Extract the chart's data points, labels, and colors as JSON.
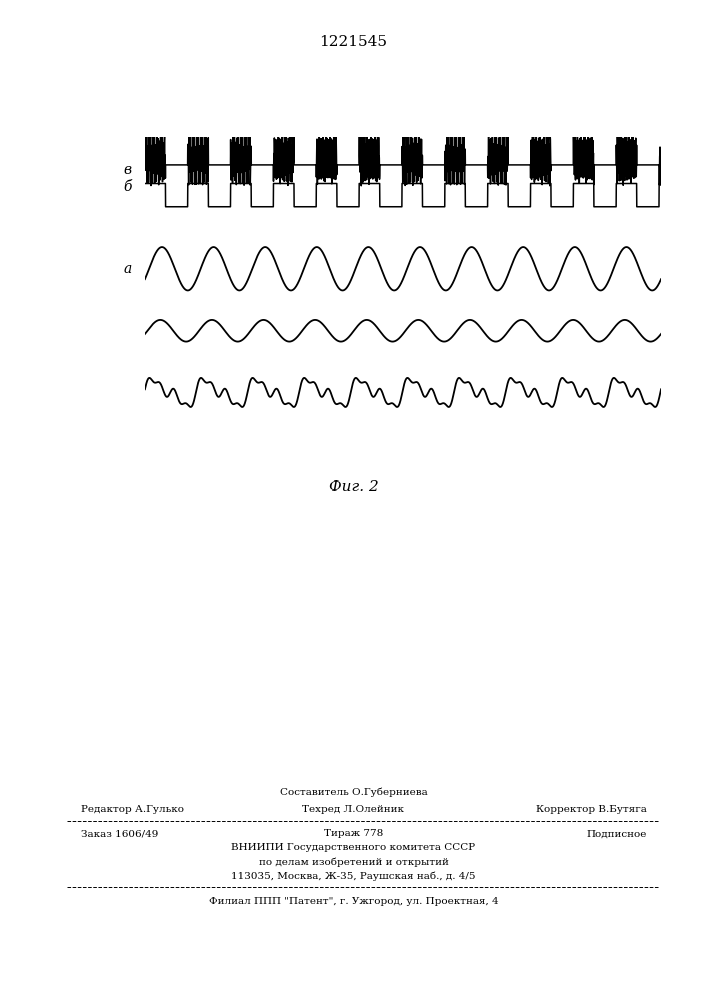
{
  "patent_number": "1221545",
  "fig_label": "Фиг. 2",
  "label_v": "в",
  "label_b": "б",
  "label_a": "а",
  "background_color": "#ffffff",
  "line_color": "#000000",
  "box_color": "#000000",
  "footer_line0_center": "Составитель О.Губерниева",
  "footer_line1_left": "Редактор А.Гулько",
  "footer_line1_center": "Техред Л.Олейник",
  "footer_line1_right": "Корректор В.Бутяга",
  "footer_line2_left": "Заказ 1606/49",
  "footer_line2_center": "Тираж 778",
  "footer_line2_right": "Подписное",
  "footer_line3": "ВНИИПИ Государственного комитета СССР",
  "footer_line4": "по делам изобретений и открытий",
  "footer_line5": "113035, Москва, Ж-35, Раушская наб., д. 4/5",
  "footer_line6": "Филиал ППП \"Патент\", г. Ужгород, ул. Проектная, 4"
}
